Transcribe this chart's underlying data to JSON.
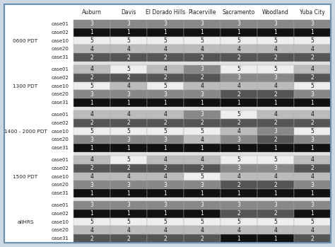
{
  "columns": [
    "Auburn",
    "Davis",
    "El Dorado Hills",
    "Placerville",
    "Sacramento",
    "Woodland",
    "Yuba City"
  ],
  "groups": [
    {
      "label": "0600 PDT",
      "cases": [
        "case01",
        "case02",
        "case10",
        "case20",
        "case31"
      ],
      "values": [
        [
          3,
          3,
          3,
          3,
          3,
          3,
          3
        ],
        [
          1,
          1,
          1,
          1,
          1,
          1,
          1
        ],
        [
          5,
          5,
          5,
          5,
          5,
          5,
          5
        ],
        [
          4,
          4,
          4,
          4,
          4,
          4,
          4
        ],
        [
          2,
          2,
          2,
          2,
          2,
          2,
          2
        ]
      ]
    },
    {
      "label": "1300 PDT",
      "cases": [
        "case01",
        "case02",
        "case10",
        "case20",
        "case31"
      ],
      "values": [
        [
          4,
          5,
          4,
          3,
          5,
          5,
          4
        ],
        [
          2,
          2,
          2,
          2,
          3,
          3,
          2
        ],
        [
          5,
          4,
          5,
          4,
          4,
          4,
          5
        ],
        [
          3,
          3,
          3,
          3,
          2,
          2,
          3
        ],
        [
          1,
          1,
          1,
          1,
          1,
          1,
          1
        ]
      ]
    },
    {
      "label": "1400 - 2000 PDT",
      "cases": [
        "case01",
        "case02",
        "case10",
        "case20",
        "case31"
      ],
      "values": [
        [
          4,
          4,
          4,
          3,
          5,
          4,
          4
        ],
        [
          2,
          2,
          2,
          2,
          2,
          2,
          2
        ],
        [
          5,
          5,
          5,
          5,
          4,
          3,
          5
        ],
        [
          3,
          3,
          3,
          4,
          3,
          2,
          3
        ],
        [
          1,
          1,
          1,
          1,
          1,
          1,
          1
        ]
      ]
    },
    {
      "label": "1500 PDT",
      "cases": [
        "case01",
        "case02",
        "case10",
        "case20",
        "case31"
      ],
      "values": [
        [
          4,
          5,
          4,
          4,
          5,
          5,
          4
        ],
        [
          2,
          2,
          2,
          2,
          3,
          3,
          2
        ],
        [
          4,
          4,
          4,
          5,
          4,
          4,
          4
        ],
        [
          3,
          3,
          3,
          3,
          2,
          2,
          3
        ],
        [
          1,
          1,
          1,
          1,
          1,
          1,
          1
        ]
      ]
    },
    {
      "label": "allHRS",
      "cases": [
        "case01",
        "case02",
        "case10",
        "case20",
        "case31"
      ],
      "values": [
        [
          3,
          3,
          3,
          3,
          3,
          3,
          3
        ],
        [
          1,
          1,
          1,
          1,
          2,
          2,
          1
        ],
        [
          5,
          5,
          5,
          5,
          5,
          5,
          5
        ],
        [
          4,
          4,
          4,
          4,
          4,
          4,
          4
        ],
        [
          2,
          2,
          2,
          2,
          1,
          1,
          2
        ]
      ]
    }
  ],
  "color_map": {
    "1": "#111111",
    "2": "#555555",
    "3": "#888888",
    "4": "#bbbbbb",
    "5": "#eeeeee"
  },
  "text_color_map": {
    "1": "#ffffff",
    "2": "#ffffff",
    "3": "#ffffff",
    "4": "#111111",
    "5": "#111111"
  },
  "outer_bg": "#ccd8e4",
  "border_color": "#6b90b0",
  "fig_width": 4.74,
  "fig_height": 3.49,
  "dpi": 100
}
